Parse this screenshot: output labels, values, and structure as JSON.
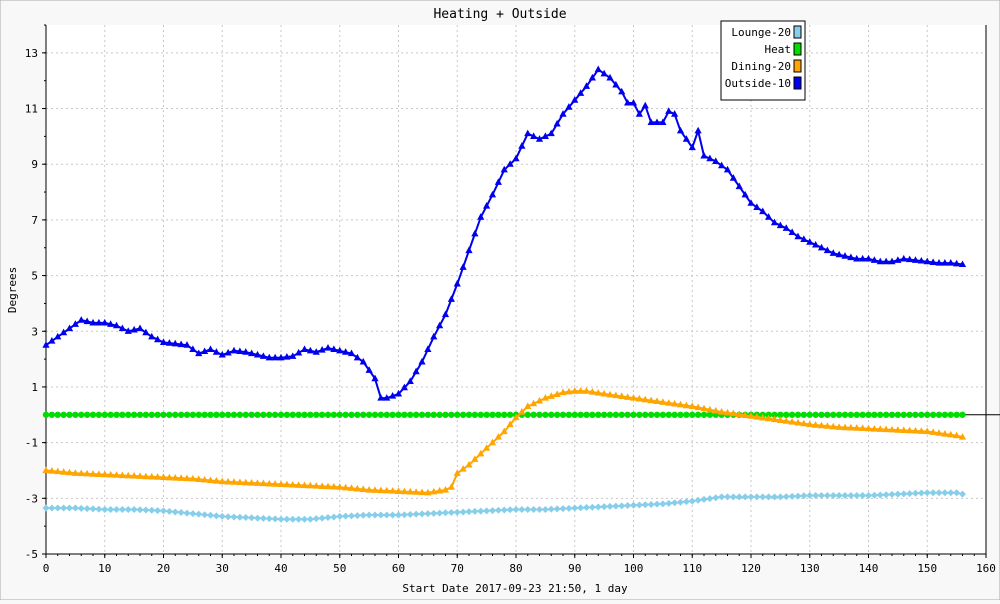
{
  "chart_data": {
    "type": "line",
    "title": "Heating + Outside",
    "xlabel": "Start Date 2017-09-23 21:50, 1 day",
    "ylabel": "Degrees",
    "xlim": [
      0,
      160
    ],
    "ylim": [
      -5,
      14
    ],
    "x_ticks": [
      0,
      10,
      20,
      30,
      40,
      50,
      60,
      70,
      80,
      90,
      100,
      110,
      120,
      130,
      140,
      150,
      160
    ],
    "y_ticks": [
      -5,
      -3,
      -1,
      1,
      3,
      5,
      7,
      9,
      11,
      13
    ],
    "grid": true,
    "legend_position": "top-right",
    "series": [
      {
        "name": "Lounge-20",
        "color": "#87ceeb",
        "marker": "diamond",
        "points": [
          [
            0,
            -3.35
          ],
          [
            5,
            -3.35
          ],
          [
            10,
            -3.4
          ],
          [
            15,
            -3.4
          ],
          [
            20,
            -3.45
          ],
          [
            25,
            -3.55
          ],
          [
            30,
            -3.65
          ],
          [
            35,
            -3.7
          ],
          [
            40,
            -3.75
          ],
          [
            45,
            -3.75
          ],
          [
            50,
            -3.65
          ],
          [
            55,
            -3.6
          ],
          [
            60,
            -3.6
          ],
          [
            65,
            -3.55
          ],
          [
            70,
            -3.5
          ],
          [
            75,
            -3.45
          ],
          [
            80,
            -3.4
          ],
          [
            85,
            -3.4
          ],
          [
            90,
            -3.35
          ],
          [
            95,
            -3.3
          ],
          [
            100,
            -3.25
          ],
          [
            105,
            -3.2
          ],
          [
            110,
            -3.1
          ],
          [
            115,
            -2.95
          ],
          [
            120,
            -2.95
          ],
          [
            125,
            -2.95
          ],
          [
            130,
            -2.9
          ],
          [
            135,
            -2.9
          ],
          [
            140,
            -2.9
          ],
          [
            145,
            -2.85
          ],
          [
            150,
            -2.8
          ],
          [
            155,
            -2.8
          ],
          [
            156,
            -2.85
          ]
        ]
      },
      {
        "name": "Heat",
        "color": "#00dd00",
        "marker": "circle",
        "points": [
          [
            0,
            0
          ],
          [
            156,
            0
          ]
        ]
      },
      {
        "name": "Dining-20",
        "color": "#ffa500",
        "marker": "triangle",
        "points": [
          [
            0,
            -2.0
          ],
          [
            5,
            -2.1
          ],
          [
            10,
            -2.15
          ],
          [
            15,
            -2.2
          ],
          [
            20,
            -2.25
          ],
          [
            25,
            -2.3
          ],
          [
            30,
            -2.4
          ],
          [
            35,
            -2.45
          ],
          [
            40,
            -2.5
          ],
          [
            45,
            -2.55
          ],
          [
            50,
            -2.6
          ],
          [
            55,
            -2.7
          ],
          [
            60,
            -2.75
          ],
          [
            65,
            -2.8
          ],
          [
            68,
            -2.7
          ],
          [
            69,
            -2.6
          ],
          [
            70,
            -2.1
          ],
          [
            72,
            -1.8
          ],
          [
            75,
            -1.2
          ],
          [
            78,
            -0.6
          ],
          [
            80,
            -0.1
          ],
          [
            82,
            0.3
          ],
          [
            85,
            0.6
          ],
          [
            88,
            0.8
          ],
          [
            90,
            0.85
          ],
          [
            92,
            0.85
          ],
          [
            95,
            0.75
          ],
          [
            100,
            0.6
          ],
          [
            105,
            0.45
          ],
          [
            110,
            0.3
          ],
          [
            115,
            0.1
          ],
          [
            120,
            -0.05
          ],
          [
            125,
            -0.2
          ],
          [
            130,
            -0.35
          ],
          [
            135,
            -0.45
          ],
          [
            140,
            -0.5
          ],
          [
            145,
            -0.55
          ],
          [
            150,
            -0.6
          ],
          [
            155,
            -0.75
          ],
          [
            156,
            -0.8
          ]
        ]
      },
      {
        "name": "Outside-10",
        "color": "#0000ee",
        "marker": "triangle",
        "points": [
          [
            0,
            2.5
          ],
          [
            2,
            2.8
          ],
          [
            4,
            3.1
          ],
          [
            6,
            3.4
          ],
          [
            8,
            3.3
          ],
          [
            10,
            3.3
          ],
          [
            12,
            3.2
          ],
          [
            14,
            3.0
          ],
          [
            16,
            3.1
          ],
          [
            18,
            2.8
          ],
          [
            20,
            2.6
          ],
          [
            22,
            2.55
          ],
          [
            24,
            2.5
          ],
          [
            26,
            2.2
          ],
          [
            28,
            2.35
          ],
          [
            30,
            2.15
          ],
          [
            32,
            2.3
          ],
          [
            34,
            2.25
          ],
          [
            36,
            2.15
          ],
          [
            38,
            2.05
          ],
          [
            40,
            2.05
          ],
          [
            42,
            2.1
          ],
          [
            44,
            2.35
          ],
          [
            46,
            2.25
          ],
          [
            48,
            2.4
          ],
          [
            50,
            2.3
          ],
          [
            52,
            2.2
          ],
          [
            54,
            1.9
          ],
          [
            56,
            1.3
          ],
          [
            57,
            0.6
          ],
          [
            58,
            0.6
          ],
          [
            60,
            0.75
          ],
          [
            62,
            1.2
          ],
          [
            64,
            1.9
          ],
          [
            66,
            2.8
          ],
          [
            68,
            3.6
          ],
          [
            70,
            4.7
          ],
          [
            72,
            5.9
          ],
          [
            74,
            7.1
          ],
          [
            76,
            7.9
          ],
          [
            78,
            8.8
          ],
          [
            80,
            9.2
          ],
          [
            82,
            10.1
          ],
          [
            84,
            9.9
          ],
          [
            86,
            10.1
          ],
          [
            88,
            10.8
          ],
          [
            90,
            11.3
          ],
          [
            92,
            11.8
          ],
          [
            94,
            12.4
          ],
          [
            96,
            12.1
          ],
          [
            98,
            11.6
          ],
          [
            99,
            11.2
          ],
          [
            100,
            11.2
          ],
          [
            101,
            10.8
          ],
          [
            102,
            11.1
          ],
          [
            103,
            10.5
          ],
          [
            105,
            10.5
          ],
          [
            106,
            10.9
          ],
          [
            107,
            10.8
          ],
          [
            108,
            10.2
          ],
          [
            110,
            9.6
          ],
          [
            111,
            10.2
          ],
          [
            112,
            9.3
          ],
          [
            114,
            9.1
          ],
          [
            116,
            8.8
          ],
          [
            118,
            8.2
          ],
          [
            120,
            7.6
          ],
          [
            122,
            7.3
          ],
          [
            124,
            6.9
          ],
          [
            126,
            6.7
          ],
          [
            128,
            6.4
          ],
          [
            130,
            6.2
          ],
          [
            132,
            6.0
          ],
          [
            134,
            5.8
          ],
          [
            136,
            5.7
          ],
          [
            138,
            5.6
          ],
          [
            140,
            5.6
          ],
          [
            142,
            5.5
          ],
          [
            144,
            5.5
          ],
          [
            146,
            5.6
          ],
          [
            148,
            5.55
          ],
          [
            150,
            5.5
          ],
          [
            152,
            5.45
          ],
          [
            154,
            5.45
          ],
          [
            156,
            5.4
          ]
        ]
      }
    ]
  }
}
